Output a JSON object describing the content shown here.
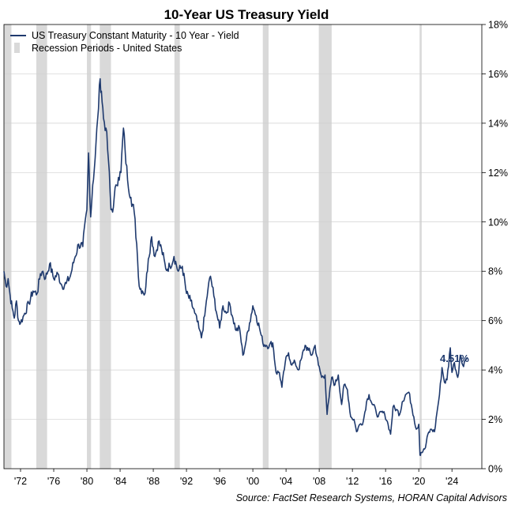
{
  "chart_data": {
    "type": "line",
    "title": "10-Year US Treasury Yield",
    "xlabel": "",
    "ylabel": "",
    "xlim": [
      1970.0,
      2027.6
    ],
    "ylim": [
      0,
      18
    ],
    "y_ticks": [
      0,
      2,
      4,
      6,
      8,
      10,
      12,
      14,
      16,
      18
    ],
    "y_tick_labels": [
      "0%",
      "2%",
      "4%",
      "6%",
      "8%",
      "10%",
      "12%",
      "14%",
      "16%",
      "18%"
    ],
    "x_ticks": [
      1972,
      1976,
      1980,
      1984,
      1988,
      1992,
      1996,
      2000,
      2004,
      2008,
      2012,
      2016,
      2020,
      2024
    ],
    "x_tick_labels": [
      "'72",
      "'76",
      "'80",
      "'84",
      "'88",
      "'92",
      "'96",
      "'00",
      "'04",
      "'08",
      "'12",
      "'16",
      "'20",
      "'24"
    ],
    "legend_position": "top-left",
    "series": [
      {
        "name": "US Treasury Constant Maturity - 10 Year - Yield",
        "color": "#1f3a6e",
        "x": [
          1970.0,
          1970.25,
          1970.5,
          1970.75,
          1971.0,
          1971.25,
          1971.5,
          1971.75,
          1972.0,
          1972.5,
          1973.0,
          1973.5,
          1974.0,
          1974.4,
          1974.7,
          1975.0,
          1975.5,
          1976.0,
          1976.5,
          1977.0,
          1977.5,
          1978.0,
          1978.5,
          1979.0,
          1979.5,
          1980.0,
          1980.2,
          1980.45,
          1980.7,
          1981.0,
          1981.3,
          1981.6,
          1981.75,
          1982.0,
          1982.3,
          1982.6,
          1982.9,
          1983.2,
          1983.5,
          1983.8,
          1984.1,
          1984.4,
          1984.6,
          1984.9,
          1985.3,
          1985.7,
          1986.0,
          1986.3,
          1986.7,
          1987.0,
          1987.4,
          1987.8,
          1988.2,
          1988.6,
          1989.0,
          1989.5,
          1990.0,
          1990.5,
          1991.0,
          1991.5,
          1992.0,
          1992.5,
          1993.0,
          1993.5,
          1993.8,
          1994.2,
          1994.6,
          1994.9,
          1995.3,
          1995.7,
          1996.0,
          1996.4,
          1996.8,
          1997.2,
          1997.6,
          1998.0,
          1998.4,
          1998.8,
          1999.2,
          1999.6,
          2000.0,
          2000.4,
          2000.8,
          2001.2,
          2001.6,
          2002.0,
          2002.4,
          2002.8,
          2003.2,
          2003.5,
          2003.9,
          2004.3,
          2004.7,
          2005.1,
          2005.5,
          2005.9,
          2006.3,
          2006.7,
          2007.1,
          2007.5,
          2007.9,
          2008.3,
          2008.7,
          2008.95,
          2009.2,
          2009.5,
          2009.9,
          2010.3,
          2010.7,
          2011.0,
          2011.4,
          2011.8,
          2012.2,
          2012.5,
          2012.9,
          2013.3,
          2013.7,
          2014.0,
          2014.4,
          2014.8,
          2015.1,
          2015.5,
          2015.9,
          2016.3,
          2016.6,
          2016.9,
          2017.3,
          2017.7,
          2018.0,
          2018.4,
          2018.8,
          2019.1,
          2019.4,
          2019.7,
          2020.0,
          2020.15,
          2020.25,
          2020.5,
          2020.8,
          2021.1,
          2021.5,
          2021.9,
          2022.2,
          2022.5,
          2022.8,
          2023.1,
          2023.4,
          2023.8,
          2024.0,
          2024.3,
          2024.7,
          2025.0,
          2025.3,
          2025.6,
          2025.9
        ],
        "values": [
          8.0,
          7.4,
          7.7,
          7.0,
          6.5,
          6.1,
          6.8,
          6.0,
          5.9,
          6.3,
          6.7,
          7.2,
          7.1,
          7.9,
          8.0,
          7.7,
          8.3,
          7.7,
          7.9,
          7.4,
          7.5,
          7.8,
          8.5,
          9.1,
          9.0,
          10.5,
          12.8,
          10.2,
          11.5,
          12.6,
          14.2,
          15.8,
          15.3,
          14.2,
          13.8,
          12.5,
          10.5,
          10.6,
          11.5,
          11.8,
          12.0,
          13.8,
          12.9,
          11.7,
          11.0,
          10.4,
          9.1,
          7.4,
          7.2,
          7.1,
          8.5,
          9.4,
          8.6,
          9.2,
          8.9,
          8.1,
          8.2,
          8.6,
          8.0,
          8.2,
          7.1,
          6.8,
          6.3,
          5.7,
          5.3,
          6.2,
          7.3,
          7.8,
          7.0,
          6.2,
          5.7,
          6.6,
          6.3,
          6.7,
          6.1,
          5.6,
          5.7,
          4.6,
          5.2,
          5.9,
          6.6,
          6.2,
          5.7,
          5.1,
          5.0,
          5.0,
          5.1,
          3.9,
          3.9,
          3.3,
          4.3,
          4.7,
          4.2,
          4.3,
          4.0,
          4.5,
          5.0,
          4.8,
          4.6,
          5.0,
          4.2,
          3.7,
          3.8,
          2.2,
          2.9,
          3.7,
          3.4,
          3.8,
          2.6,
          3.4,
          3.2,
          2.1,
          2.0,
          1.5,
          1.8,
          1.9,
          2.7,
          3.0,
          2.6,
          2.4,
          2.1,
          2.3,
          2.2,
          1.8,
          1.4,
          2.5,
          2.4,
          2.2,
          2.7,
          3.0,
          3.1,
          2.6,
          2.1,
          1.6,
          1.8,
          0.55,
          0.65,
          0.7,
          0.85,
          1.4,
          1.6,
          1.5,
          2.3,
          3.0,
          4.1,
          3.5,
          3.6,
          4.9,
          3.9,
          4.3,
          3.7,
          4.6,
          4.2,
          4.4,
          4.51
        ]
      }
    ],
    "recessions": [
      {
        "start": 1970.0,
        "end": 1970.9
      },
      {
        "start": 1973.9,
        "end": 1975.2
      },
      {
        "start": 1980.0,
        "end": 1980.5
      },
      {
        "start": 1981.55,
        "end": 1982.9
      },
      {
        "start": 1990.55,
        "end": 1991.2
      },
      {
        "start": 2001.2,
        "end": 2001.9
      },
      {
        "start": 2007.95,
        "end": 2009.5
      },
      {
        "start": 2020.1,
        "end": 2020.35
      }
    ],
    "recession_color": "#d9d9d9",
    "legend": [
      {
        "label": "US Treasury Constant Maturity - 10 Year - Yield",
        "kind": "line",
        "color": "#1f3a6e"
      },
      {
        "label": "Recession Periods - United States",
        "kind": "bar",
        "color": "#d9d9d9"
      }
    ],
    "annotations": [
      {
        "text": "4.51%",
        "x": 2025.9,
        "y": 4.51
      }
    ],
    "source": "Source: FactSet Research Systems, HORAN Capital Advisors"
  }
}
